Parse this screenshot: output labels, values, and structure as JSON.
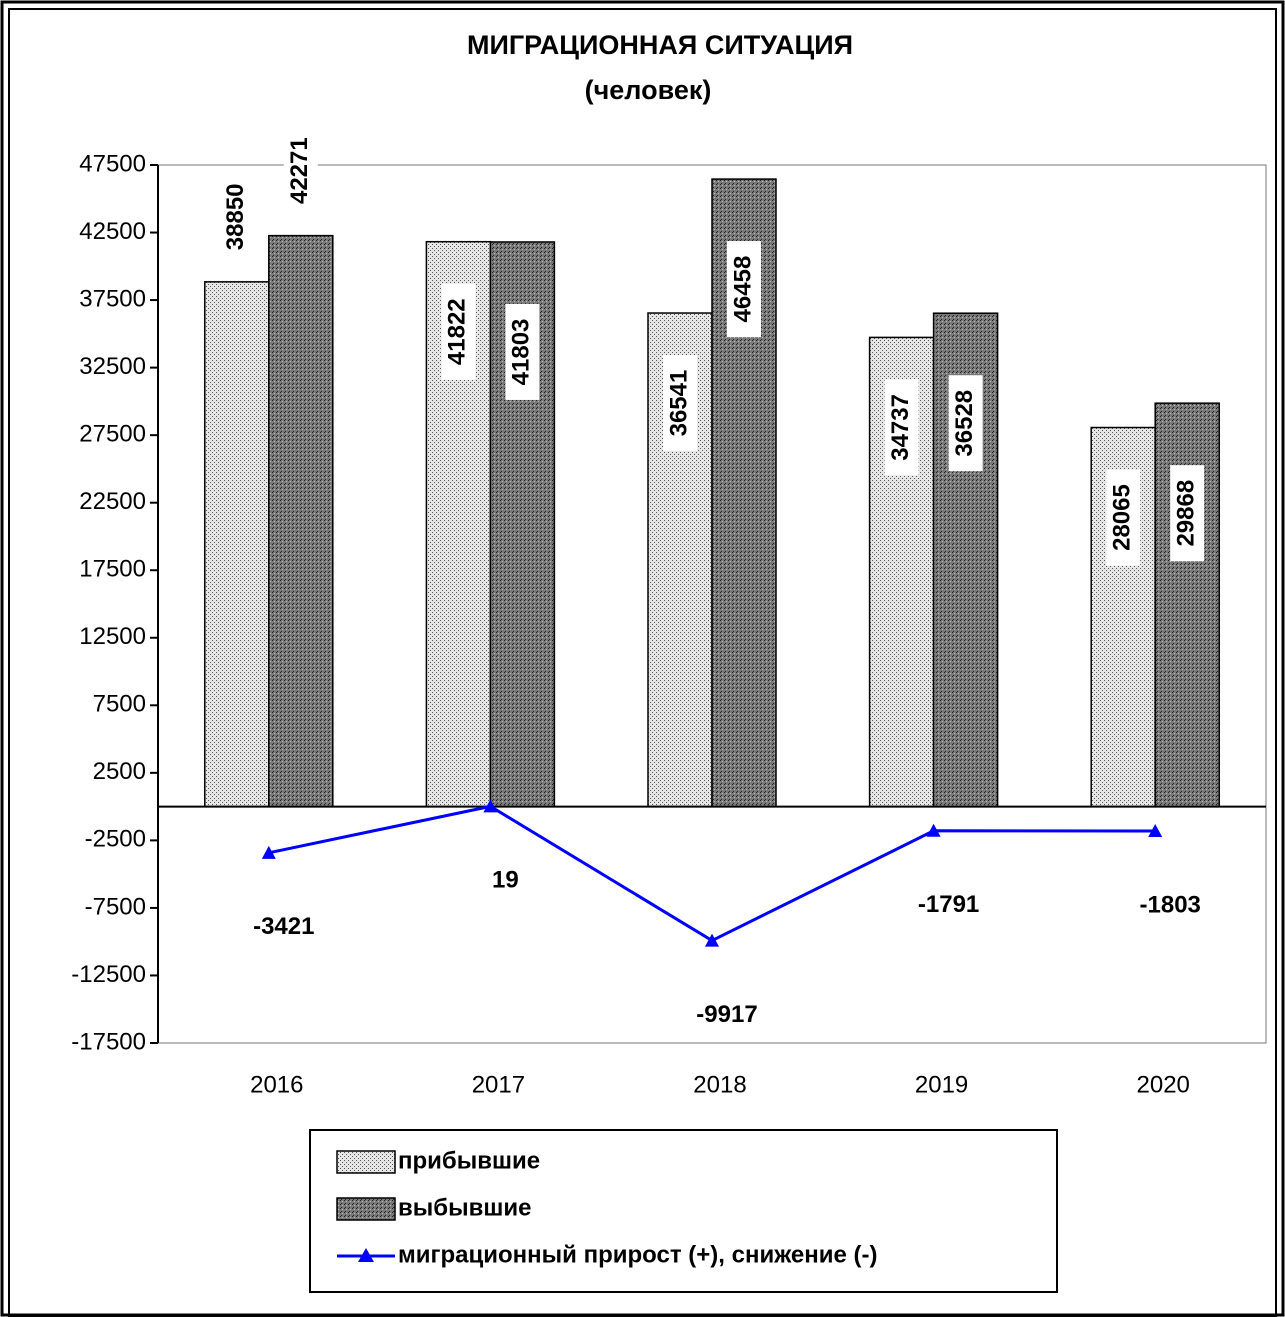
{
  "chart_data": {
    "type": "bar_line",
    "title": "МИГРАЦИОННАЯ  СИТУАЦИЯ",
    "subtitle": "(человек)",
    "categories": [
      "2016",
      "2017",
      "2018",
      "2019",
      "2020"
    ],
    "series": [
      {
        "name": "прибывшие",
        "color": "#e6e6e6",
        "type": "bar",
        "values": [
          38850,
          41822,
          36541,
          34737,
          28065
        ]
      },
      {
        "name": "выбывшие",
        "color": "#7a7a7a",
        "type": "bar",
        "values": [
          42271,
          41803,
          46458,
          36528,
          29868
        ]
      },
      {
        "name": "миграционный прирост (+), снижение (-)",
        "color": "#0000ff",
        "type": "line",
        "values": [
          -3421,
          19,
          -9917,
          -1791,
          -1803
        ]
      }
    ],
    "ylim": [
      -17500,
      47500
    ],
    "yticks": [
      47500,
      42500,
      37500,
      32500,
      27500,
      22500,
      17500,
      12500,
      7500,
      2500,
      -2500,
      -7500,
      -12500,
      -17500
    ],
    "grid": false
  }
}
